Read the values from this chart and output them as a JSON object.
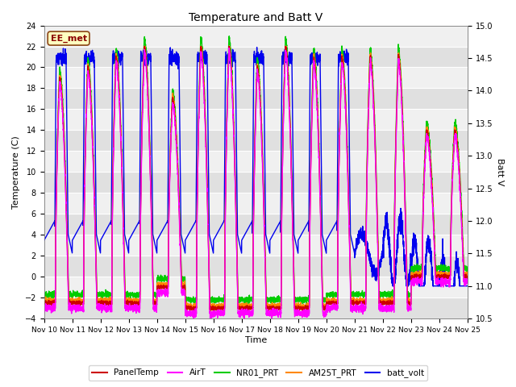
{
  "title": "Temperature and Batt V",
  "xlabel": "Time",
  "ylabel_left": "Temperature (C)",
  "ylabel_right": "Batt V",
  "xlim": [
    0,
    15
  ],
  "ylim_left": [
    -4,
    24
  ],
  "ylim_right": [
    10.5,
    15.0
  ],
  "yticks_left": [
    -4,
    -2,
    0,
    2,
    4,
    6,
    8,
    10,
    12,
    14,
    16,
    18,
    20,
    22,
    24
  ],
  "yticks_right": [
    10.5,
    11.0,
    11.5,
    12.0,
    12.5,
    13.0,
    13.5,
    14.0,
    14.5,
    15.0
  ],
  "xtick_labels": [
    "Nov 10",
    "Nov 11",
    "Nov 12",
    "Nov 13",
    "Nov 14",
    "Nov 15",
    "Nov 16",
    "Nov 17",
    "Nov 18",
    "Nov 19",
    "Nov 20",
    "Nov 21",
    "Nov 22",
    "Nov 23",
    "Nov 24",
    "Nov 25"
  ],
  "annotation_text": "EE_met",
  "annotation_color": "#8B0000",
  "annotation_bg": "#FFFFC0",
  "annotation_border": "#8B4513",
  "fig_bg": "#FFFFFF",
  "plot_bg_light": "#F0F0F0",
  "plot_bg_dark": "#E0E0E0",
  "grid_color": "#FFFFFF",
  "legend_entries": [
    {
      "label": "PanelTemp",
      "color": "#CC0000",
      "lw": 1.0
    },
    {
      "label": "AirT",
      "color": "#FF00FF",
      "lw": 1.0
    },
    {
      "label": "NR01_PRT",
      "color": "#00CC00",
      "lw": 1.0
    },
    {
      "label": "AM25T_PRT",
      "color": "#FF8800",
      "lw": 1.0
    },
    {
      "label": "batt_volt",
      "color": "#0000EE",
      "lw": 1.0
    }
  ]
}
